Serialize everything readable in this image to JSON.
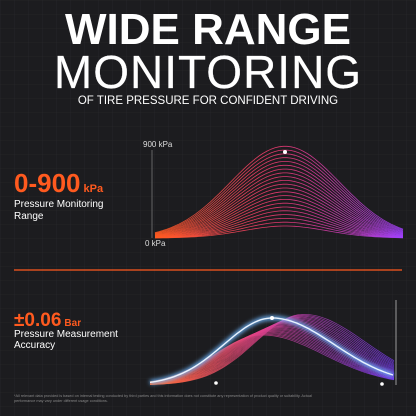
{
  "header": {
    "title_line1": "WIDE RANGE",
    "title_line2": "MONITORING",
    "subtitle": "OF TIRE PRESSURE FOR CONFIDENT DRIVING"
  },
  "range": {
    "value": "0-900",
    "unit": "kPa",
    "label_lines": [
      "Pressure Monitoring",
      "Range"
    ],
    "top_label": "900 kPa",
    "bottom_label": "0 kPa"
  },
  "accuracy": {
    "value": "±0.06",
    "unit": "Bar",
    "label_lines": [
      "Pressure Measurement",
      "Accuracy"
    ]
  },
  "footnote_lines": [
    "*All relevant data provided is based on internal testing conducted by third parties and this information does not constitute any representation of product quality or suitability. Actual",
    "performance may vary under different usage conditions."
  ]
}
